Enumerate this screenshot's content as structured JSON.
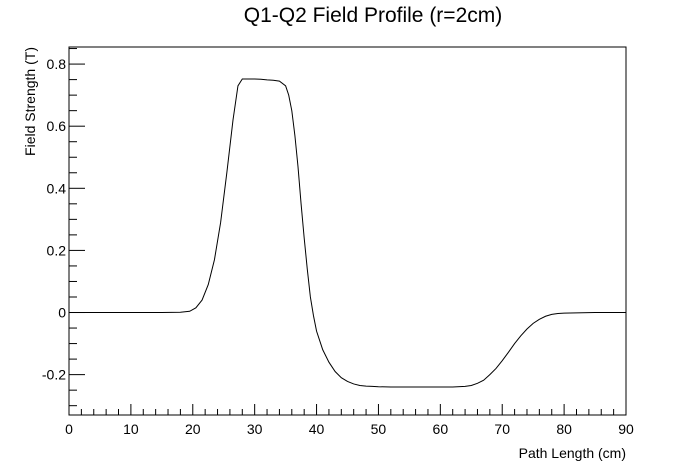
{
  "chart_data": {
    "type": "line",
    "title": "Q1-Q2 Field Profile (r=2cm)",
    "xlabel": "Path Length (cm)",
    "ylabel": "Field Strength (T)",
    "xlim": [
      0,
      90
    ],
    "ylim": [
      -0.33,
      0.855
    ],
    "x_ticks": [
      0,
      10,
      20,
      30,
      40,
      50,
      60,
      70,
      80,
      90
    ],
    "x_tick_labels": [
      "0",
      "10",
      "20",
      "30",
      "40",
      "50",
      "60",
      "70",
      "80",
      "90"
    ],
    "y_ticks": [
      -0.2,
      0,
      0.2,
      0.4,
      0.6,
      0.8
    ],
    "y_tick_labels": [
      "-0.2",
      "0",
      "0.2",
      "0.4",
      "0.6",
      "0.8"
    ],
    "grid": false,
    "legend": "none",
    "line_color": "#000000",
    "series": [
      {
        "x": [
          0,
          5,
          10,
          15,
          18,
          19.5,
          20.5,
          21.5,
          22.5,
          23.5,
          24.5,
          25.5,
          26.5,
          27.3,
          28,
          29,
          30,
          31,
          32,
          33,
          34,
          35,
          35.5,
          36,
          36.5,
          37,
          37.5,
          38,
          38.5,
          39,
          39.5,
          40,
          41,
          42,
          43,
          44,
          45,
          46,
          47,
          48,
          49,
          50,
          52,
          55,
          58,
          60,
          62,
          64,
          65,
          66,
          67,
          68,
          69,
          70,
          71,
          72,
          73,
          74,
          75,
          76,
          77,
          78,
          79,
          80,
          82,
          85,
          90
        ],
        "y": [
          0,
          0,
          0,
          0,
          0.001,
          0.004,
          0.015,
          0.04,
          0.09,
          0.17,
          0.29,
          0.45,
          0.62,
          0.73,
          0.752,
          0.752,
          0.752,
          0.751,
          0.749,
          0.748,
          0.745,
          0.73,
          0.7,
          0.65,
          0.57,
          0.47,
          0.35,
          0.24,
          0.14,
          0.05,
          -0.01,
          -0.06,
          -0.12,
          -0.16,
          -0.19,
          -0.21,
          -0.222,
          -0.23,
          -0.235,
          -0.237,
          -0.238,
          -0.239,
          -0.24,
          -0.24,
          -0.24,
          -0.24,
          -0.24,
          -0.238,
          -0.235,
          -0.228,
          -0.218,
          -0.2,
          -0.18,
          -0.155,
          -0.128,
          -0.1,
          -0.075,
          -0.053,
          -0.035,
          -0.022,
          -0.012,
          -0.006,
          -0.003,
          -0.002,
          -0.001,
          0,
          0
        ]
      }
    ]
  }
}
